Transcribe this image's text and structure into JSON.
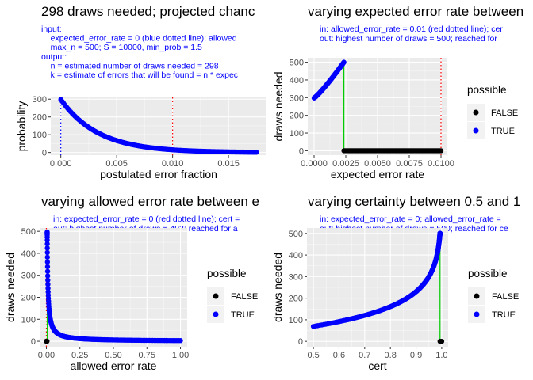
{
  "chart_data": [
    {
      "type": "scatter",
      "title": "298 draws needed; projected chanc",
      "subtitle": [
        "input:",
        "    expected_error_rate = 0 (blue dotted line); allowed",
        "    max_n = 500; S = 10000, min_prob = 1.5",
        "output:",
        "    n = estimated number of draws needed = 298",
        "    k = estimate of errors that will be found = n * expec"
      ],
      "xlabel": "postulated error fraction",
      "ylabel": "probability",
      "xlim": [
        -0.0009,
        0.0184
      ],
      "ylim": [
        -15,
        310
      ],
      "xticks": [
        0,
        0.005,
        0.01,
        0.015
      ],
      "xtick_labels": [
        "0.000",
        "0.005",
        "0.010",
        "0.015"
      ],
      "yticks": [
        0,
        100,
        200,
        300
      ],
      "ytick_labels": [
        "0",
        "100",
        "200",
        "300"
      ],
      "grid": true,
      "vlines": [
        {
          "x": 0,
          "color": "#0000ff"
        },
        {
          "x": 0.01,
          "color": "#ff0000"
        }
      ],
      "curve": {
        "kind": "exp",
        "x0": 0,
        "x1": 0.0175,
        "y0": 298,
        "rate": 298,
        "n": 140
      },
      "point_color": "#0000ff"
    },
    {
      "type": "scatter",
      "title": "varying expected error rate between",
      "subtitle": [
        "in: allowed_error_rate = 0.01 (red dotted line); cer",
        "out: highest number of draws = 500; reached for"
      ],
      "xlabel": "expected error rate",
      "ylabel": "draws needed",
      "xlim": [
        -0.0005,
        0.0105
      ],
      "ylim": [
        -25,
        525
      ],
      "xticks": [
        0,
        0.0025,
        0.005,
        0.0075,
        0.01
      ],
      "xtick_labels": [
        "0.0000",
        "0.0025",
        "0.0050",
        "0.0075",
        "0.0100"
      ],
      "yticks": [
        0,
        100,
        200,
        300,
        400,
        500
      ],
      "ytick_labels": [
        "0",
        "100",
        "200",
        "300",
        "400",
        "500"
      ],
      "grid": true,
      "vlines": [
        {
          "x": 0.01,
          "color": "#ff0000"
        },
        {
          "x": 0.00235,
          "color": "#00cc00",
          "y_to": 500
        }
      ],
      "curve": {
        "kind": "rise",
        "x0": 0,
        "x1": 0.00235,
        "y0": 298,
        "y1": 500,
        "n": 70
      },
      "false_points": {
        "x0": 0.00235,
        "x1": 0.01,
        "y": 0,
        "n": 90
      },
      "legend": {
        "title": "possible",
        "entries": [
          {
            "label": "FALSE",
            "color": "#000000"
          },
          {
            "label": "TRUE",
            "color": "#0000ff"
          }
        ],
        "position": "right"
      }
    },
    {
      "type": "scatter",
      "title": "varying allowed error rate between e",
      "subtitle": [
        "in: expected_error_rate = 0 (red dotted line); cert =",
        "out: highest number of draws = 493; reached for a"
      ],
      "xlabel": "allowed error rate",
      "ylabel": "draws needed",
      "xlim": [
        -0.05,
        1.05
      ],
      "ylim": [
        -25,
        515
      ],
      "xticks": [
        0,
        0.25,
        0.5,
        0.75,
        1
      ],
      "xtick_labels": [
        "0.00",
        "0.25",
        "0.50",
        "0.75",
        "1.00"
      ],
      "yticks": [
        0,
        100,
        200,
        300,
        400,
        500
      ],
      "ytick_labels": [
        "0",
        "100",
        "200",
        "300",
        "400",
        "500"
      ],
      "grid": true,
      "vlines": [
        {
          "x": 0.0,
          "color": "#ff0000"
        },
        {
          "x": 0.006,
          "color": "#00cc00",
          "y_to": 493
        }
      ],
      "curve": {
        "kind": "inv",
        "x0": 0.006,
        "x1": 1.0,
        "k": 2.98,
        "n": 160
      },
      "false_points": {
        "x0": 0,
        "x1": 0.005,
        "y": 0,
        "n": 3
      },
      "legend": {
        "title": "possible",
        "entries": [
          {
            "label": "FALSE",
            "color": "#000000"
          },
          {
            "label": "TRUE",
            "color": "#0000ff"
          }
        ],
        "position": "right"
      }
    },
    {
      "type": "scatter",
      "title": "varying certainty between 0.5 and 1",
      "subtitle": [
        "in: expected_error_rate = 0; allowed_error_rate =",
        "out: highest number of draws = 500; reached for ce"
      ],
      "xlabel": "cert",
      "ylabel": "draws needed",
      "xlim": [
        0.475,
        1.025
      ],
      "ylim": [
        -25,
        525
      ],
      "xticks": [
        0.5,
        0.6,
        0.7,
        0.8,
        0.9,
        1.0
      ],
      "xtick_labels": [
        "0.5",
        "0.6",
        "0.7",
        "0.8",
        "0.9",
        "1.0"
      ],
      "yticks": [
        0,
        100,
        200,
        300,
        400,
        500
      ],
      "ytick_labels": [
        "0",
        "100",
        "200",
        "300",
        "400",
        "500"
      ],
      "grid": true,
      "vlines": [
        {
          "x": 0.9934,
          "color": "#00cc00",
          "y_to": 500
        }
      ],
      "curve": {
        "kind": "log",
        "x0": 0.5,
        "x1": 0.9934,
        "k": 100,
        "n": 180
      },
      "false_points": {
        "x0": 0.9935,
        "x1": 1.0,
        "y": 0,
        "n": 3
      },
      "legend": {
        "title": "possible",
        "entries": [
          {
            "label": "FALSE",
            "color": "#000000"
          },
          {
            "label": "TRUE",
            "color": "#0000ff"
          }
        ],
        "position": "right"
      }
    }
  ]
}
